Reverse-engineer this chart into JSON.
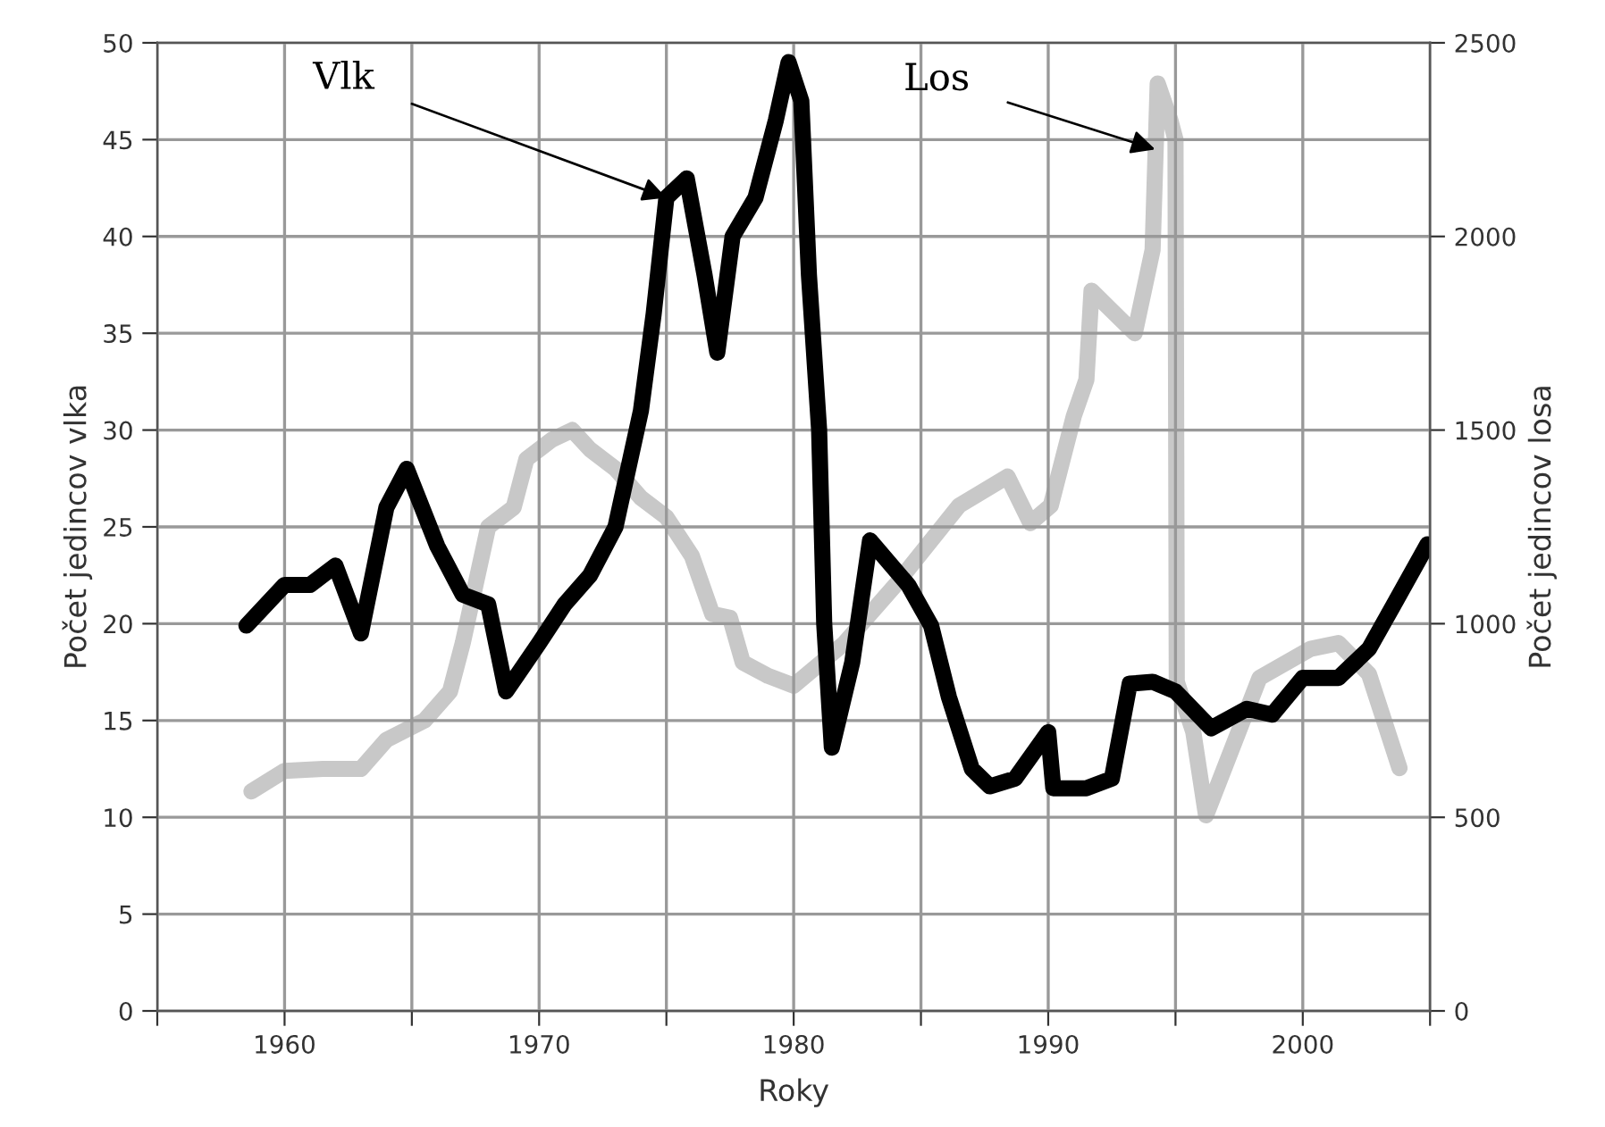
{
  "chart_data": {
    "type": "line",
    "xlabel": "Roky",
    "ylabel": "Počet jedincov vlka",
    "y2label": "Počet jedincov losa",
    "xlim": [
      1955,
      2005
    ],
    "xticks": [
      {
        "value": 1955,
        "label": null
      },
      1960,
      {
        "value": 1965,
        "label": null
      },
      1970,
      {
        "value": 1975,
        "label": null
      },
      1980,
      {
        "value": 1985,
        "label": null
      },
      1990,
      {
        "value": 1995,
        "label": null
      },
      2000,
      {
        "value": 2005,
        "label": null
      }
    ],
    "ylim": [
      0,
      50
    ],
    "yticks": [
      0,
      5,
      10,
      15,
      20,
      25,
      30,
      35,
      40,
      45,
      50
    ],
    "y2lim": [
      0,
      2500
    ],
    "y2ticks": [
      0,
      500,
      1000,
      1500,
      2000,
      2500
    ],
    "grid": true,
    "marker": "none",
    "line_style": "solid",
    "series": [
      {
        "color": "#c8c8c8",
        "axis": "y2",
        "x": [
          1958.7,
          1960,
          1961.5,
          1963,
          1964,
          1965.5,
          1966.5,
          1967,
          1967.5,
          1968,
          1969,
          1969.5,
          1970.5,
          1971.3,
          1972,
          1973,
          1974,
          1975,
          1976,
          1976.8,
          1977.5,
          1978,
          1979,
          1980,
          1982,
          1984,
          1986.5,
          1988.4,
          1989.3,
          1990.1,
          1991,
          1991.5,
          1991.7,
          1993.4,
          1994.1,
          1994.3,
          1994.8,
          1995,
          1995.05,
          1995.7,
          1996.2,
          1998.3,
          2000.3,
          2001.4,
          2002.6,
          2003.8
        ],
        "values": [
          567,
          620,
          625,
          625,
          700,
          750,
          825,
          950,
          1100,
          1250,
          1300,
          1425,
          1475,
          1500,
          1450,
          1400,
          1325,
          1275,
          1175,
          1025,
          1015,
          900,
          865,
          840,
          950,
          1100,
          1305,
          1380,
          1260,
          1305,
          1535,
          1630,
          1860,
          1750,
          1965,
          2395,
          2300,
          2250,
          850,
          720,
          505,
          860,
          935,
          950,
          870,
          627
        ]
      },
      {
        "color": "#000000",
        "axis": "y",
        "x": [
          1958.5,
          1960,
          1961,
          1962,
          1963,
          1964,
          1964.8,
          1966,
          1967,
          1968,
          1968.7,
          1970,
          1971,
          1972,
          1973,
          1974,
          1974.5,
          1975,
          1975.8,
          1976.5,
          1977,
          1977.6,
          1978.5,
          1979.3,
          1979.8,
          1980.3,
          1980.6,
          1981,
          1981.2,
          1981.5,
          1982.3,
          1983,
          1984.5,
          1985.4,
          1986.1,
          1987,
          1987.7,
          1988.7,
          1990,
          1990.2,
          1991.5,
          1992.5,
          1993.2,
          1994.1,
          1995,
          1996.4,
          1997.8,
          1998.8,
          2000,
          2001.4,
          2002.6,
          2003.5,
          2004.9
        ],
        "values": [
          19.9,
          22,
          22,
          23,
          19.5,
          26,
          28,
          24,
          21.5,
          21,
          16.5,
          19,
          21,
          22.5,
          25,
          31,
          36,
          42,
          43,
          38,
          34,
          40,
          42,
          46,
          49,
          47,
          38,
          30,
          20,
          13.6,
          18,
          24.3,
          22,
          19.9,
          16.2,
          12.5,
          11.6,
          12,
          14.4,
          11.5,
          11.5,
          12,
          16.9,
          17,
          16.5,
          14.6,
          15.6,
          15.3,
          17.2,
          17.2,
          18.7,
          20.8,
          24.1
        ]
      }
    ],
    "annotations": [
      {
        "text": "Vlk",
        "x": 1975,
        "y": 42
      },
      {
        "text": "Los",
        "x": 1994.2,
        "y": 44.5
      }
    ]
  }
}
